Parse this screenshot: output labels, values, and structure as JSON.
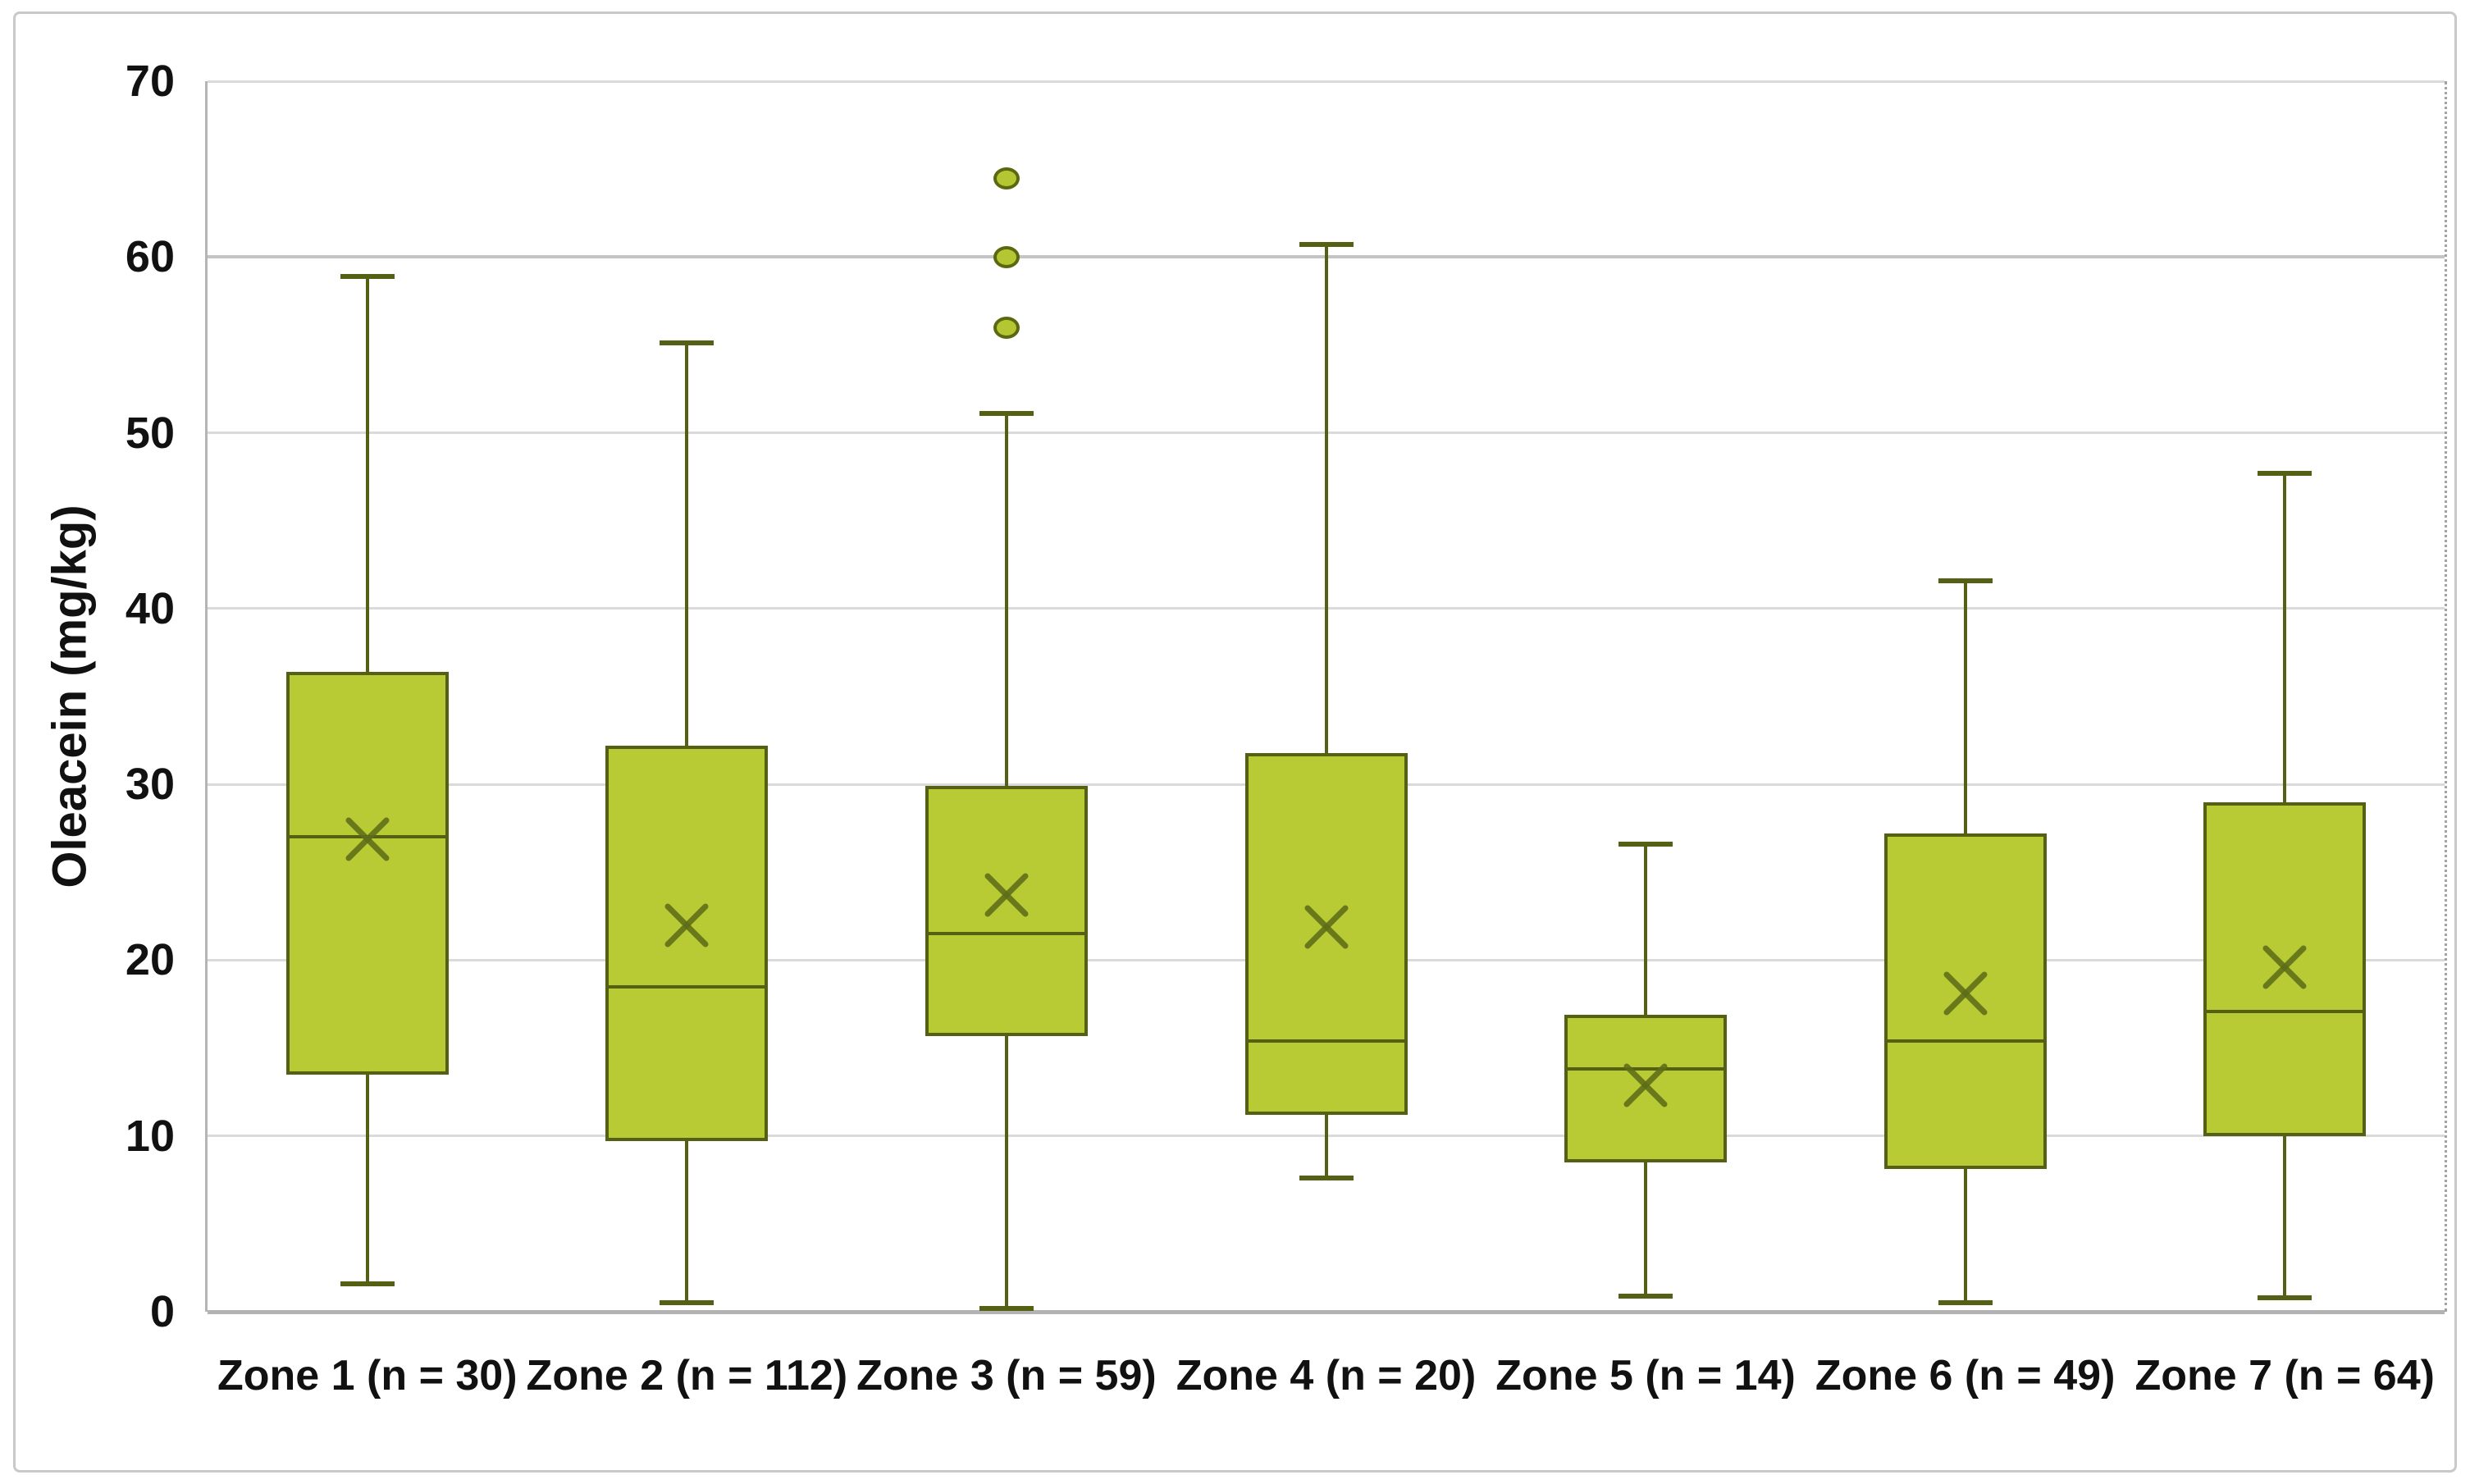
{
  "chart_data": {
    "type": "box",
    "title": "",
    "xlabel": "",
    "ylabel": "Oleacein (mg/kg)",
    "ylim": [
      0,
      70
    ],
    "yticks": [
      0,
      10,
      20,
      30,
      40,
      50,
      60,
      70
    ],
    "grid": "horizontal-light-gray",
    "legend": "none",
    "categories": [
      "Zone 1 (n = 30)",
      "Zone 2 (n = 112)",
      "Zone 3 (n = 59)",
      "Zone 4 (n = 20)",
      "Zone 5 (n = 14)",
      "Zone 6 (n = 49)",
      "Zone 7 (n = 64)"
    ],
    "series": [
      {
        "name": "Zone 1 (n = 30)",
        "n": 30,
        "whisker_low": 1.6,
        "q1": 13.5,
        "median": 27.0,
        "mean": 26.9,
        "q3": 36.4,
        "whisker_high": 58.9,
        "outliers": []
      },
      {
        "name": "Zone 2 (n = 112)",
        "n": 112,
        "whisker_low": 0.5,
        "q1": 9.7,
        "median": 18.5,
        "mean": 22.0,
        "q3": 32.2,
        "whisker_high": 55.1,
        "outliers": []
      },
      {
        "name": "Zone 3 (n = 59)",
        "n": 59,
        "whisker_low": 0.2,
        "q1": 15.7,
        "median": 21.5,
        "mean": 23.7,
        "q3": 29.9,
        "whisker_high": 51.1,
        "outliers": [
          56,
          60,
          64.5
        ]
      },
      {
        "name": "Zone 4 (n = 20)",
        "n": 20,
        "whisker_low": 7.6,
        "q1": 11.2,
        "median": 15.4,
        "mean": 21.9,
        "q3": 31.8,
        "whisker_high": 60.7,
        "outliers": []
      },
      {
        "name": "Zone 5 (n = 14)",
        "n": 14,
        "whisker_low": 0.9,
        "q1": 8.5,
        "median": 13.8,
        "mean": 12.9,
        "q3": 16.9,
        "whisker_high": 26.6,
        "outliers": []
      },
      {
        "name": "Zone 6 (n = 49)",
        "n": 49,
        "whisker_low": 0.5,
        "q1": 8.1,
        "median": 15.4,
        "mean": 18.1,
        "q3": 27.2,
        "whisker_high": 41.6,
        "outliers": []
      },
      {
        "name": "Zone 7 (n = 64)",
        "n": 64,
        "whisker_low": 0.8,
        "q1": 10.0,
        "median": 17.1,
        "mean": 19.6,
        "q3": 29.0,
        "whisker_high": 47.7,
        "outliers": []
      }
    ],
    "colors": {
      "box_fill": "#b9cb34",
      "box_border": "#556014",
      "whisker": "#556014",
      "median": "#556014",
      "mean_marker": "#5d6d18",
      "outlier_fill": "#b4c733",
      "outlier_border": "#5b680f",
      "gridline": "#dadada",
      "gridline_major": "#b3b3b3",
      "axis_text": "#111111",
      "figure_border": "#c9c9c9"
    }
  }
}
